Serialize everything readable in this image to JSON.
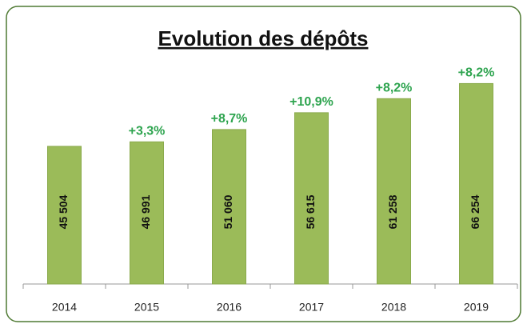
{
  "chart_data": {
    "type": "bar",
    "title": "Evolution des dépôts",
    "categories": [
      "2014",
      "2015",
      "2016",
      "2017",
      "2018",
      "2019"
    ],
    "values": [
      45504,
      46991,
      51060,
      56615,
      61258,
      66254
    ],
    "value_labels": [
      "45 504",
      "46 991",
      "51 060",
      "56 615",
      "61 258",
      "66 254"
    ],
    "growth_labels": [
      null,
      "+3,3%",
      "+8,7%",
      "+10,9%",
      "+8,2%",
      "+8,2%"
    ],
    "color": "#9bbb59",
    "growth_color": "#2ea44f",
    "ylim": [
      0,
      78000
    ]
  }
}
